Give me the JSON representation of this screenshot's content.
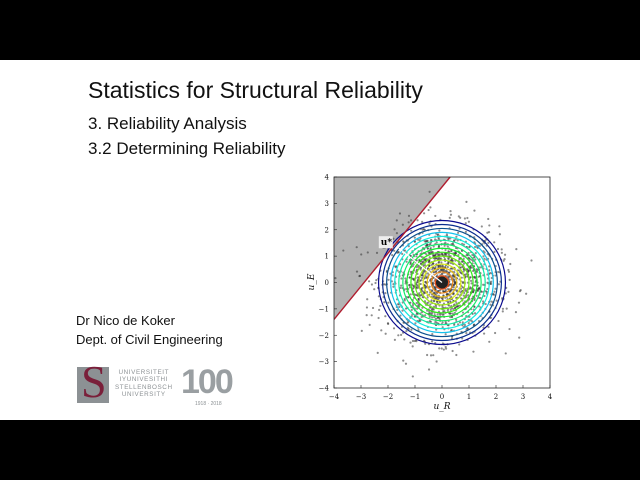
{
  "slide": {
    "title": "Statistics for Structural Reliability",
    "subtitle_1": "3. Reliability Analysis",
    "subtitle_2": "3.2 Determining Reliability",
    "author": "Dr Nico de Koker",
    "department": "Dept. of Civil Engineering"
  },
  "logo": {
    "lines": [
      "UNIVERSITEIT",
      "IYUNIVESITHI",
      "STELLENBOSCH",
      "UNIVERSITY"
    ],
    "centenary": "100",
    "years": "1918 · 2018"
  },
  "chart_data": {
    "type": "scatter",
    "xlabel": "u_R",
    "ylabel": "u_E",
    "xlim": [
      -4,
      4
    ],
    "ylim": [
      -4,
      4
    ],
    "xticks": [
      "−4",
      "−3",
      "−2",
      "−1",
      "0",
      "1",
      "2",
      "3",
      "4"
    ],
    "yticks": [
      "−4",
      "−3",
      "−2",
      "−1",
      "0",
      "1",
      "2",
      "3",
      "4"
    ],
    "limit_state_line": {
      "points": [
        [
          -4,
          -1.4
        ],
        [
          0.3,
          4
        ]
      ],
      "color": "#b01c2e",
      "failure_region_color": "#b3b3b3"
    },
    "design_point": {
      "label": "u*",
      "x": -1.6,
      "y": 1.3
    },
    "contours": {
      "center": [
        0,
        0
      ],
      "radii": [
        0.1,
        0.25,
        0.4,
        0.55,
        0.7,
        0.85,
        1.0,
        1.15,
        1.3,
        1.45,
        1.6,
        1.75,
        1.9,
        2.05,
        2.2,
        2.35
      ]
    },
    "samples": {
      "count": 1500,
      "distribution": "standard normal",
      "color": "#333333"
    }
  }
}
